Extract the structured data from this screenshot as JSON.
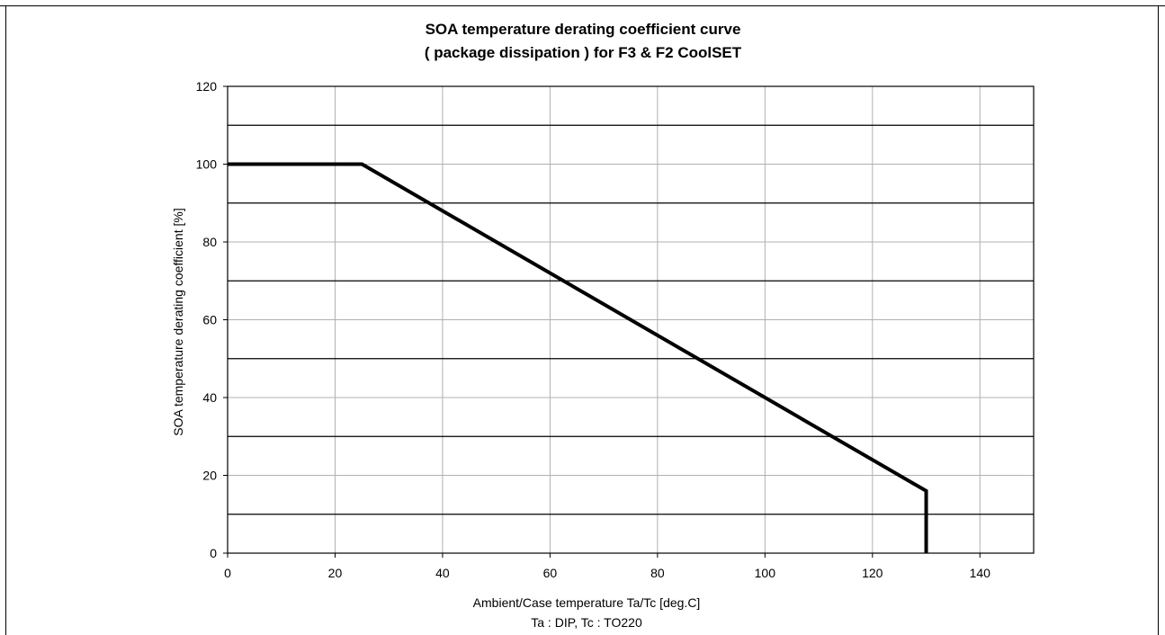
{
  "chart_data": {
    "type": "line",
    "title_lines": [
      "SOA temperature derating coefficient curve",
      "( package dissipation ) for F3 & F2 CoolSET"
    ],
    "xlabel_lines": [
      "Ambient/Case temperature Ta/Tc [deg.C]",
      "Ta : DIP, Tc : TO220"
    ],
    "ylabel": "SOA temperature derating coefficient [%]",
    "xlim": [
      0,
      150
    ],
    "ylim": [
      0,
      120
    ],
    "x_ticks": [
      0,
      20,
      40,
      60,
      80,
      100,
      120,
      140
    ],
    "y_ticks": [
      0,
      20,
      40,
      60,
      80,
      100,
      120
    ],
    "major_gridlines_y": [
      10,
      30,
      50,
      70,
      90,
      110
    ],
    "minor_gridlines_y": [
      20,
      40,
      60,
      80,
      100
    ],
    "gridlines_x": [
      20,
      40,
      60,
      80,
      100,
      120,
      140
    ],
    "grid": true,
    "series": [
      {
        "color": "#000000",
        "x": [
          0,
          25,
          130,
          130
        ],
        "y": [
          100,
          100,
          16,
          0
        ]
      }
    ]
  }
}
